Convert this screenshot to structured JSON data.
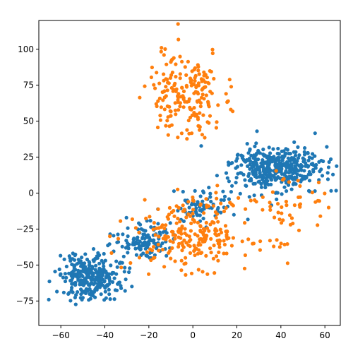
{
  "chart_data": {
    "type": "scatter",
    "title": "",
    "xlabel": "",
    "ylabel": "",
    "xlim": [
      -70,
      67
    ],
    "ylim": [
      -92,
      120
    ],
    "xticks": [
      -60,
      -40,
      -20,
      0,
      20,
      40,
      60
    ],
    "yticks": [
      -75,
      -50,
      -25,
      0,
      25,
      50,
      75,
      100
    ],
    "xtick_labels": [
      "−60",
      "−40",
      "−20",
      "0",
      "20",
      "40",
      "60"
    ],
    "ytick_labels": [
      "−75",
      "−50",
      "−25",
      "0",
      "25",
      "50",
      "75",
      "100"
    ],
    "grid": false,
    "legend": "none",
    "colors": {
      "series_1": "#1f77b4",
      "series_2": "#ff7f0e"
    },
    "series": [
      {
        "color": "#1f77b4",
        "clusters": [
          {
            "cx": 38,
            "cy": 17,
            "rx": 14,
            "ry": 10,
            "n": 420
          },
          {
            "cx": -46,
            "cy": -58,
            "rx": 10,
            "ry": 11,
            "n": 300
          },
          {
            "cx": -22,
            "cy": -33,
            "rx": 8,
            "ry": 8,
            "n": 120
          },
          {
            "cx": 3,
            "cy": -10,
            "rx": 8,
            "ry": 7,
            "n": 70
          }
        ]
      },
      {
        "color": "#ff7f0e",
        "clusters": [
          {
            "cx": -3,
            "cy": 68,
            "rx": 12,
            "ry": 20,
            "n": 200
          },
          {
            "cx": 0,
            "cy": -28,
            "rx": 18,
            "ry": 16,
            "n": 240
          },
          {
            "cx": 45,
            "cy": -10,
            "rx": 14,
            "ry": 20,
            "n": 50
          }
        ]
      }
    ]
  }
}
